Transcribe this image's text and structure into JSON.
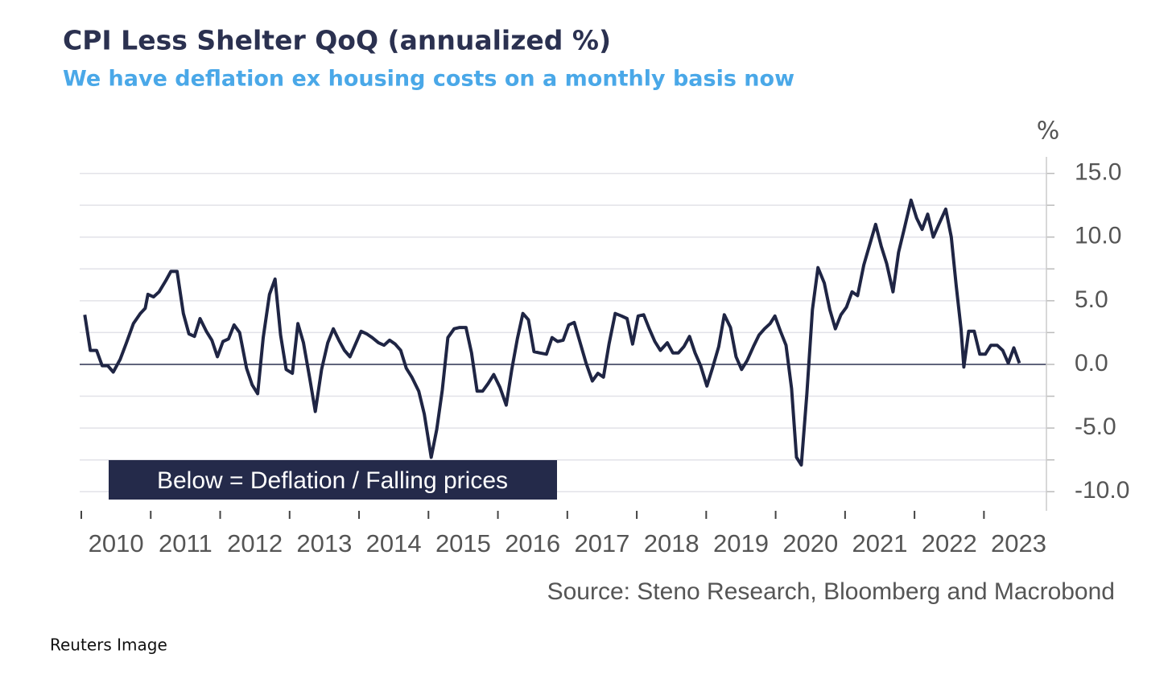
{
  "chart_data": {
    "type": "line",
    "title": "CPI Less Shelter QoQ (annualized %)",
    "subtitle": "We have deflation ex housing costs on a monthly basis now",
    "y_unit": "%",
    "annotation": "Below = Deflation / Falling prices",
    "source": "Source: Steno Research, Bloomberg and Macrobond",
    "color": "#1f2544",
    "grid": true,
    "xlim": [
      2010,
      2023.9
    ],
    "xticks": [
      2010,
      2011,
      2012,
      2013,
      2014,
      2015,
      2016,
      2017,
      2018,
      2019,
      2020,
      2021,
      2022,
      2023
    ],
    "ylim": [
      -11.5,
      16.3
    ],
    "yticks": [
      {
        "value": 15,
        "label": "15.0"
      },
      {
        "value": 10,
        "label": "10.0"
      },
      {
        "value": 5,
        "label": "5.0"
      },
      {
        "value": 0,
        "label": "0.0"
      },
      {
        "value": -5,
        "label": "-5.0"
      },
      {
        "value": -10,
        "label": "-10.0"
      }
    ],
    "minor_yticks": [
      12.5,
      7.5,
      2.5,
      -2.5,
      -7.5
    ],
    "x": [
      2010.05,
      2010.13,
      2010.22,
      2010.3,
      2010.38,
      2010.46,
      2010.56,
      2010.65,
      2010.75,
      2010.85,
      2010.92,
      2010.96,
      2011.04,
      2011.12,
      2011.22,
      2011.29,
      2011.38,
      2011.47,
      2011.55,
      2011.63,
      2011.71,
      2011.8,
      2011.88,
      2011.96,
      2012.04,
      2012.12,
      2012.2,
      2012.28,
      2012.38,
      2012.46,
      2012.54,
      2012.62,
      2012.71,
      2012.79,
      2012.87,
      2012.95,
      2013.04,
      2013.12,
      2013.2,
      2013.29,
      2013.37,
      2013.46,
      2013.55,
      2013.63,
      2013.71,
      2013.79,
      2013.87,
      2013.95,
      2014.03,
      2014.11,
      2014.19,
      2014.28,
      2014.36,
      2014.44,
      2014.52,
      2014.6,
      2014.68,
      2014.76,
      2014.86,
      2014.94,
      2015.04,
      2015.12,
      2015.2,
      2015.28,
      2015.37,
      2015.45,
      2015.54,
      2015.62,
      2015.7,
      2015.78,
      2015.86,
      2015.94,
      2016.03,
      2016.12,
      2016.2,
      2016.28,
      2016.36,
      2016.44,
      2016.52,
      2016.6,
      2016.7,
      2016.78,
      2016.86,
      2016.94,
      2017.02,
      2017.1,
      2017.18,
      2017.27,
      2017.36,
      2017.44,
      2017.52,
      2017.6,
      2017.69,
      2017.78,
      2017.86,
      2017.94,
      2018.02,
      2018.1,
      2018.18,
      2018.26,
      2018.34,
      2018.44,
      2018.52,
      2018.6,
      2018.68,
      2018.76,
      2018.84,
      2018.92,
      2019.01,
      2019.09,
      2019.18,
      2019.26,
      2019.35,
      2019.43,
      2019.51,
      2019.59,
      2019.68,
      2019.76,
      2019.84,
      2019.92,
      2019.99,
      2020.07,
      2020.15,
      2020.23,
      2020.3,
      2020.37,
      2020.45,
      2020.53,
      2020.61,
      2020.7,
      2020.78,
      2020.86,
      2020.94,
      2021.02,
      2021.1,
      2021.18,
      2021.27,
      2021.36,
      2021.44,
      2021.52,
      2021.6,
      2021.69,
      2021.77,
      2021.85,
      2021.95,
      2022.03,
      2022.11,
      2022.19,
      2022.27,
      2022.35,
      2022.45,
      2022.53,
      2022.6,
      2022.67,
      2022.71,
      2022.78,
      2022.86,
      2022.94,
      2023.02,
      2023.1,
      2023.19,
      2023.27,
      2023.35,
      2023.43,
      2023.51
    ],
    "values": [
      3.9,
      1.1,
      1.1,
      -0.1,
      -0.1,
      -0.6,
      0.4,
      1.7,
      3.2,
      4.0,
      4.4,
      5.5,
      5.3,
      5.7,
      6.6,
      7.3,
      7.3,
      4.0,
      2.4,
      2.2,
      3.6,
      2.6,
      1.9,
      0.6,
      1.8,
      2.0,
      3.1,
      2.5,
      -0.3,
      -1.6,
      -2.3,
      2.1,
      5.5,
      6.7,
      2.3,
      -0.4,
      -0.7,
      3.2,
      1.7,
      -1.1,
      -3.7,
      -0.4,
      1.7,
      2.8,
      1.9,
      1.1,
      0.6,
      1.6,
      2.6,
      2.4,
      2.1,
      1.7,
      1.5,
      1.9,
      1.6,
      1.1,
      -0.3,
      -1.0,
      -2.1,
      -3.9,
      -7.3,
      -5.1,
      -2.0,
      2.1,
      2.8,
      2.9,
      2.9,
      0.9,
      -2.1,
      -2.1,
      -1.5,
      -0.8,
      -1.8,
      -3.2,
      -0.4,
      2.0,
      4.0,
      3.5,
      1.0,
      0.9,
      0.8,
      2.1,
      1.8,
      1.9,
      3.1,
      3.3,
      1.8,
      0.1,
      -1.3,
      -0.7,
      -1.0,
      1.6,
      4.0,
      3.8,
      3.6,
      1.6,
      3.8,
      3.9,
      2.8,
      1.8,
      1.1,
      1.7,
      0.9,
      0.9,
      1.4,
      2.2,
      0.9,
      -0.1,
      -1.7,
      -0.3,
      1.4,
      3.9,
      2.9,
      0.6,
      -0.4,
      0.3,
      1.4,
      2.3,
      2.8,
      3.2,
      3.8,
      2.6,
      1.5,
      -1.9,
      -7.3,
      -7.9,
      -2.3,
      4.3,
      7.6,
      6.4,
      4.3,
      2.8,
      3.9,
      4.5,
      5.7,
      5.4,
      7.8,
      9.5,
      11.0,
      9.3,
      7.9,
      5.7,
      8.8,
      10.6,
      12.9,
      11.5,
      10.6,
      11.8,
      10.0,
      11.0,
      12.2,
      10.0,
      6.2,
      2.8,
      -0.2,
      2.6,
      2.6,
      0.8,
      0.8,
      1.5,
      1.5,
      1.1,
      0.1,
      1.3,
      0.1
    ]
  },
  "credit": "Reuters Image"
}
